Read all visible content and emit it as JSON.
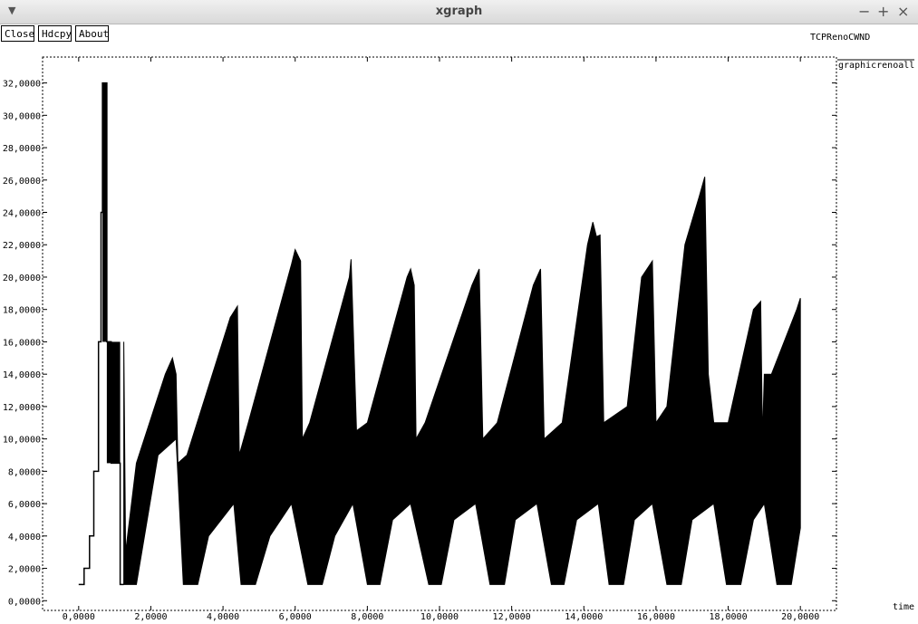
{
  "window": {
    "title": "xgraph",
    "menu_icon": "chevron-down-icon",
    "minimize_symbol": "−",
    "maximize_symbol": "+",
    "close_symbol": "×"
  },
  "toolbar": {
    "close_label": "Close",
    "hdcpy_label": "Hdcpy",
    "about_label": "About"
  },
  "chart_data": {
    "type": "line",
    "title": "TCPRenoCWND",
    "xlabel": "time",
    "ylabel": "",
    "xlim": [
      -1.0,
      21.0
    ],
    "ylim": [
      -0.6,
      33.6
    ],
    "xticks": [
      0,
      2,
      4,
      6,
      8,
      10,
      12,
      14,
      16,
      18,
      20
    ],
    "yticks": [
      0,
      2,
      4,
      6,
      8,
      10,
      12,
      14,
      16,
      18,
      20,
      22,
      24,
      26,
      28,
      30,
      32
    ],
    "tick_format": "0.0000 (comma decimal separator)",
    "grid": false,
    "legend": "right",
    "series": [
      {
        "name": "graphicrenoall",
        "color": "#000000",
        "slow_start": [
          [
            0.0,
            1
          ],
          [
            0.15,
            1
          ],
          [
            0.15,
            2
          ],
          [
            0.3,
            2
          ],
          [
            0.3,
            4
          ],
          [
            0.42,
            4
          ],
          [
            0.42,
            8
          ],
          [
            0.55,
            8
          ],
          [
            0.55,
            16
          ],
          [
            0.62,
            16
          ],
          [
            0.62,
            24
          ],
          [
            0.66,
            24
          ],
          [
            0.66,
            32
          ],
          [
            0.78,
            32
          ],
          [
            0.78,
            16
          ],
          [
            0.9,
            16
          ],
          [
            0.9,
            8.5
          ],
          [
            1.15,
            8.5
          ],
          [
            1.15,
            1
          ],
          [
            1.25,
            1
          ]
        ],
        "upper_envelope": [
          [
            1.25,
            16
          ],
          [
            1.3,
            3
          ],
          [
            1.6,
            8.5
          ],
          [
            2.4,
            14
          ],
          [
            2.6,
            15
          ],
          [
            2.7,
            14
          ],
          [
            2.75,
            8.5
          ],
          [
            3.0,
            9
          ],
          [
            4.2,
            17.5
          ],
          [
            4.4,
            18.2
          ],
          [
            4.45,
            9
          ],
          [
            4.7,
            11
          ],
          [
            5.9,
            20.8
          ],
          [
            6.0,
            21.7
          ],
          [
            6.15,
            21
          ],
          [
            6.2,
            10
          ],
          [
            6.4,
            11
          ],
          [
            7.5,
            20
          ],
          [
            7.55,
            21.1
          ],
          [
            7.7,
            10.5
          ],
          [
            8.0,
            11
          ],
          [
            9.1,
            20
          ],
          [
            9.2,
            20.5
          ],
          [
            9.3,
            19.5
          ],
          [
            9.35,
            10
          ],
          [
            9.6,
            11
          ],
          [
            10.9,
            19.5
          ],
          [
            11.1,
            20.5
          ],
          [
            11.2,
            10
          ],
          [
            11.6,
            11
          ],
          [
            12.6,
            19.5
          ],
          [
            12.8,
            20.5
          ],
          [
            12.9,
            10
          ],
          [
            13.4,
            11
          ],
          [
            14.1,
            22
          ],
          [
            14.25,
            23.4
          ],
          [
            14.35,
            22.5
          ],
          [
            14.45,
            22.6
          ],
          [
            14.55,
            11
          ],
          [
            15.2,
            12
          ],
          [
            15.6,
            20
          ],
          [
            15.9,
            21
          ],
          [
            16.0,
            11
          ],
          [
            16.3,
            12
          ],
          [
            16.8,
            22
          ],
          [
            17.2,
            25
          ],
          [
            17.35,
            26.2
          ],
          [
            17.45,
            14
          ],
          [
            17.6,
            11
          ],
          [
            18.0,
            11
          ],
          [
            18.7,
            18
          ],
          [
            18.9,
            18.5
          ],
          [
            18.95,
            10
          ],
          [
            19.0,
            14
          ],
          [
            19.2,
            14
          ],
          [
            19.9,
            18
          ],
          [
            20.0,
            18.7
          ]
        ],
        "lower_envelope": [
          [
            1.25,
            1
          ],
          [
            1.6,
            1
          ],
          [
            2.2,
            9
          ],
          [
            2.7,
            10
          ],
          [
            2.9,
            1
          ],
          [
            3.3,
            1
          ],
          [
            3.6,
            4
          ],
          [
            4.3,
            6
          ],
          [
            4.5,
            1
          ],
          [
            4.9,
            1
          ],
          [
            5.3,
            4
          ],
          [
            5.9,
            6
          ],
          [
            6.35,
            1
          ],
          [
            6.75,
            1
          ],
          [
            7.1,
            4
          ],
          [
            7.6,
            6
          ],
          [
            8.0,
            1
          ],
          [
            8.35,
            1
          ],
          [
            8.7,
            5
          ],
          [
            9.2,
            6
          ],
          [
            9.7,
            1
          ],
          [
            10.05,
            1
          ],
          [
            10.4,
            5
          ],
          [
            11.0,
            6
          ],
          [
            11.4,
            1
          ],
          [
            11.8,
            1
          ],
          [
            12.1,
            5
          ],
          [
            12.7,
            6
          ],
          [
            13.1,
            1
          ],
          [
            13.45,
            1
          ],
          [
            13.8,
            5
          ],
          [
            14.4,
            6
          ],
          [
            14.7,
            1
          ],
          [
            15.1,
            1
          ],
          [
            15.4,
            5
          ],
          [
            15.9,
            6
          ],
          [
            16.3,
            1
          ],
          [
            16.7,
            1
          ],
          [
            17.0,
            5
          ],
          [
            17.6,
            6
          ],
          [
            17.95,
            1
          ],
          [
            18.35,
            1
          ],
          [
            18.7,
            5
          ],
          [
            19.0,
            6
          ],
          [
            19.35,
            1
          ],
          [
            19.75,
            1
          ],
          [
            20.0,
            4.5
          ]
        ]
      }
    ]
  }
}
